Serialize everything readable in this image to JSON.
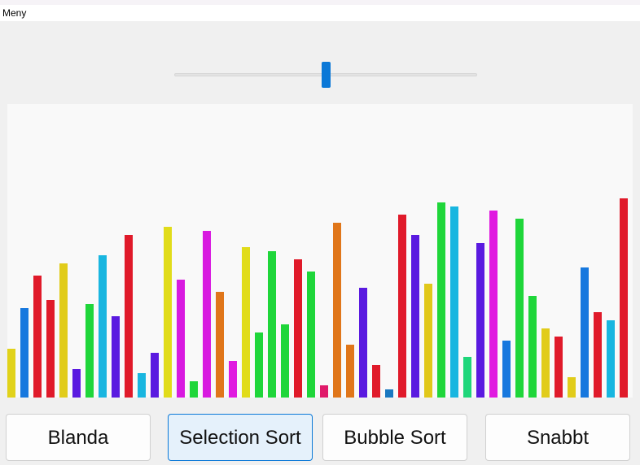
{
  "menu": {
    "items": [
      "Meny"
    ]
  },
  "slider": {
    "value": 0.5,
    "accent": "#0a78d7"
  },
  "buttons": [
    {
      "label": "Blanda",
      "active": false
    },
    {
      "label": "Selection Sort",
      "active": true
    },
    {
      "label": "Bubble Sort",
      "active": false
    },
    {
      "label": "Snabbt",
      "active": false
    }
  ],
  "chart_data": {
    "type": "bar",
    "ylim": [
      0,
      361
    ],
    "values": [
      60,
      110,
      150,
      120,
      165,
      35,
      115,
      175,
      100,
      200,
      30,
      55,
      210,
      145,
      20,
      205,
      130,
      45,
      185,
      80,
      180,
      90,
      170,
      155,
      15,
      215,
      65,
      135,
      40,
      10,
      225,
      200,
      140,
      240,
      235,
      50,
      190,
      230,
      70,
      220,
      125,
      85,
      75,
      25,
      160,
      105,
      95,
      245
    ],
    "colors": [
      "#e1d21a",
      "#1778de",
      "#e01a2a",
      "#e01a2a",
      "#e1cc1a",
      "#5a1ae0",
      "#1fd63a",
      "#19b6e0",
      "#5a1ae0",
      "#e01a2a",
      "#19b6e0",
      "#5a1ae0",
      "#e1dc1a",
      "#d81ae0",
      "#1fd63a",
      "#d81ae0",
      "#e0761a",
      "#e01ae0",
      "#e1dc1a",
      "#1fd63a",
      "#1fd63a",
      "#1fd63a",
      "#e01a2a",
      "#1fd63a",
      "#e01a6a",
      "#e0761a",
      "#e0761a",
      "#5a1ae0",
      "#e01a2a",
      "#1a78c0",
      "#e01a2a",
      "#5a1ae0",
      "#e1c81a",
      "#1fd63a",
      "#19b6e0",
      "#1fd67a",
      "#5a1ae0",
      "#e01ae0",
      "#1778de",
      "#1fd63a",
      "#1fd63a",
      "#e1cc1a",
      "#e01a2a",
      "#e1cc1a",
      "#1778de",
      "#e01a2a",
      "#19b6e0",
      "#e01a2a"
    ]
  }
}
